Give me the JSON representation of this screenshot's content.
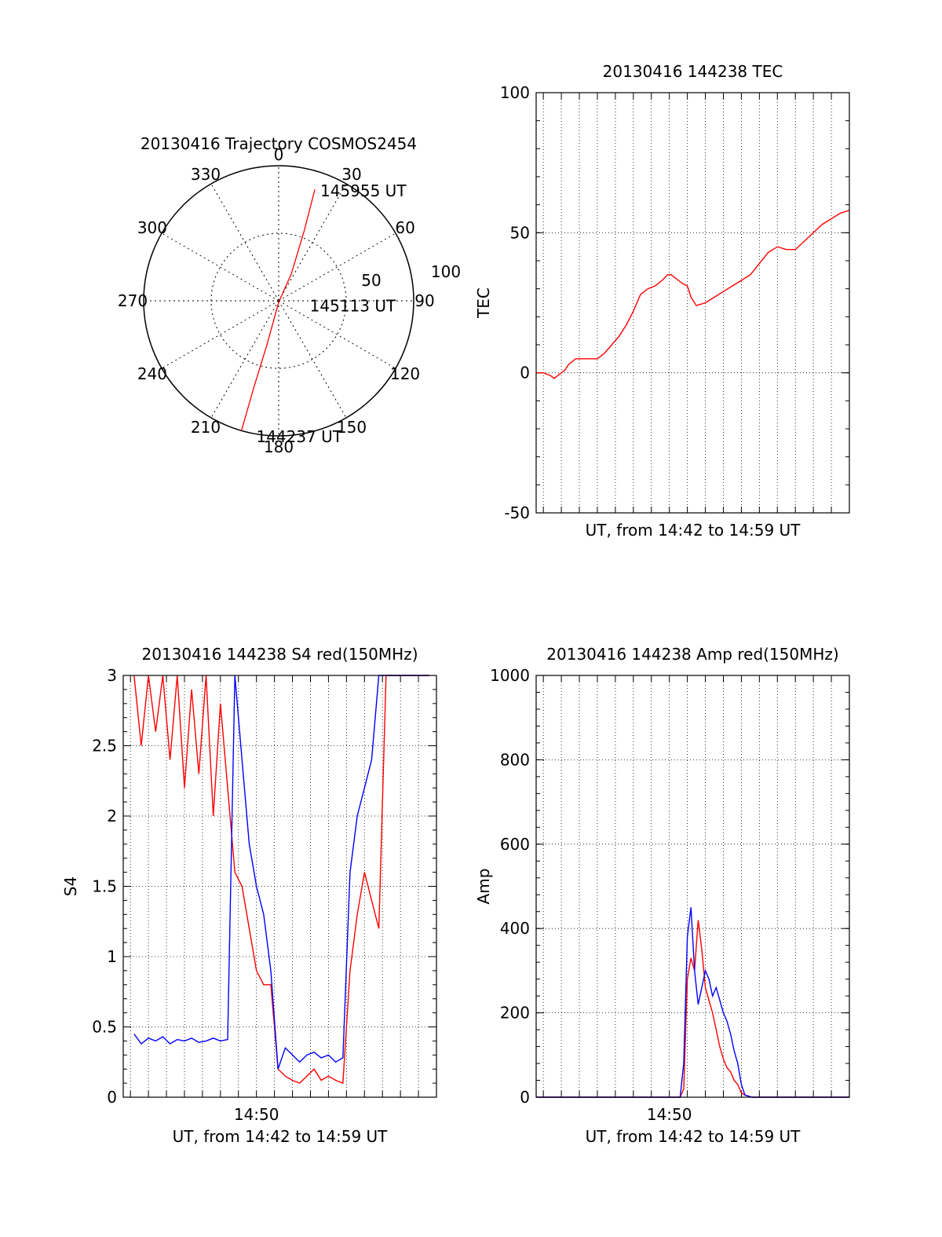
{
  "chart_data": [
    {
      "type": "polar-trajectory",
      "title": "20130416 Trajectory COSMOS2454",
      "azimuth_labels": [
        "0",
        "30",
        "60",
        "90",
        "120",
        "150",
        "180",
        "210",
        "240",
        "270",
        "300",
        "330"
      ],
      "radial_labels": [
        "50",
        "100"
      ],
      "trajectory": [
        {
          "az": 196,
          "zen": 90
        },
        {
          "az": 196,
          "zen": 60
        },
        {
          "az": 195,
          "zen": 30
        },
        {
          "az": 180,
          "zen": 1
        },
        {
          "az": 25,
          "zen": 20
        },
        {
          "az": 20,
          "zen": 50
        },
        {
          "az": 18,
          "zen": 78
        }
      ],
      "annotations": [
        {
          "text": "145955 UT",
          "az": 20,
          "zen": 78
        },
        {
          "text": "145113 UT",
          "az": 100,
          "zen": 20
        },
        {
          "text": "144237 UT",
          "az": 190,
          "zen": 92
        }
      ],
      "color": "#ff0000"
    },
    {
      "type": "line",
      "title": "20130416 144238 TEC",
      "xlabel": "UT, from 14:42 to 14:59 UT",
      "ylabel": "TEC",
      "xlim": [
        42.6,
        60.0
      ],
      "ylim": [
        -50,
        100
      ],
      "yticks": [
        -50,
        0,
        50,
        100
      ],
      "grid": true,
      "series": [
        {
          "color": "#ff0000",
          "x": [
            42.6,
            43.0,
            43.4,
            43.6,
            43.8,
            44.0,
            44.2,
            44.4,
            44.8,
            45.2,
            45.6,
            46.0,
            46.4,
            46.8,
            47.2,
            47.6,
            48.0,
            48.4,
            48.8,
            49.2,
            49.6,
            49.9,
            50.1,
            50.3,
            50.5,
            50.7,
            51.0,
            51.2,
            51.5,
            52.0,
            52.5,
            53.0,
            53.5,
            54.0,
            54.5,
            55.0,
            55.5,
            56.0,
            56.5,
            57.0,
            57.5,
            58.0,
            58.5,
            59.0,
            59.5,
            60.0
          ],
          "y": [
            0,
            0,
            -1,
            -2,
            -1,
            0,
            1,
            3,
            5,
            5,
            5,
            5,
            7,
            10,
            13,
            17,
            22,
            28,
            30,
            31,
            33,
            35,
            35,
            34,
            33,
            32,
            31,
            27,
            24,
            25,
            27,
            29,
            31,
            33,
            35,
            39,
            43,
            45,
            44,
            44,
            47,
            50,
            53,
            55,
            57,
            58
          ]
        }
      ]
    },
    {
      "type": "line",
      "title": "20130416 144238 S4 red(150MHz)",
      "xlabel": "UT, from 14:42 to 14:59 UT",
      "ylabel": "S4",
      "xlim": [
        42.6,
        60.0
      ],
      "ylim": [
        0,
        3
      ],
      "yticks": [
        "0",
        "0.5",
        "1",
        "1.5",
        "2",
        "2.5",
        "3"
      ],
      "xtick_labels": [
        {
          "x": 50,
          "label": "14:50"
        }
      ],
      "grid": true,
      "series": [
        {
          "color": "#ff0000",
          "x": [
            43.2,
            43.6,
            44.0,
            44.4,
            44.8,
            45.2,
            45.6,
            46.0,
            46.4,
            46.8,
            47.2,
            47.6,
            48.0,
            48.4,
            48.8,
            49.2,
            49.6,
            50.0,
            50.4,
            50.8,
            51.2,
            51.6,
            52.0,
            52.4,
            52.8,
            53.2,
            53.6,
            54.0,
            54.4,
            54.8,
            55.2,
            55.6,
            56.0,
            56.4,
            56.8,
            57.2,
            57.6,
            58.0,
            58.4,
            58.8,
            59.2,
            59.6
          ],
          "y": [
            3.0,
            2.5,
            3.0,
            2.6,
            3.0,
            2.4,
            3.0,
            2.2,
            2.9,
            2.3,
            3.0,
            2.0,
            2.8,
            2.2,
            1.6,
            1.5,
            1.2,
            0.9,
            0.8,
            0.8,
            0.2,
            0.15,
            0.12,
            0.1,
            0.15,
            0.2,
            0.12,
            0.15,
            0.12,
            0.1,
            0.9,
            1.3,
            1.6,
            1.4,
            1.2,
            3.0,
            3.0,
            3.0,
            3.0,
            3.0,
            3.0,
            3.0
          ]
        },
        {
          "color": "#0000ff",
          "x": [
            43.2,
            43.6,
            44.0,
            44.4,
            44.8,
            45.2,
            45.6,
            46.0,
            46.4,
            46.8,
            47.2,
            47.6,
            48.0,
            48.4,
            48.8,
            49.2,
            49.6,
            50.0,
            50.4,
            50.8,
            51.2,
            51.6,
            52.0,
            52.4,
            52.8,
            53.2,
            53.6,
            54.0,
            54.4,
            54.8,
            55.2,
            55.6,
            56.0,
            56.4,
            56.8,
            57.2,
            57.6,
            58.0,
            58.4,
            58.8,
            59.2,
            59.6
          ],
          "y": [
            0.45,
            0.38,
            0.42,
            0.4,
            0.43,
            0.38,
            0.41,
            0.4,
            0.42,
            0.39,
            0.4,
            0.42,
            0.4,
            0.41,
            3.0,
            2.4,
            1.8,
            1.5,
            1.3,
            0.9,
            0.2,
            0.35,
            0.3,
            0.25,
            0.3,
            0.32,
            0.28,
            0.3,
            0.25,
            0.28,
            1.6,
            2.0,
            2.2,
            2.4,
            3.0,
            3.0,
            3.0,
            3.0,
            3.0,
            3.0,
            3.0,
            3.0
          ]
        }
      ]
    },
    {
      "type": "line",
      "title": "20130416 144238 Amp red(150MHz)",
      "xlabel": "UT, from 14:42 to 14:59 UT",
      "ylabel": "Amp",
      "xlim": [
        42.6,
        60.0
      ],
      "ylim": [
        0,
        1000
      ],
      "yticks": [
        0,
        200,
        400,
        600,
        800,
        1000
      ],
      "xtick_labels": [
        {
          "x": 50,
          "label": "14:50"
        }
      ],
      "grid": true,
      "series": [
        {
          "color": "#ff0000",
          "x": [
            42.6,
            50.6,
            50.8,
            51.0,
            51.2,
            51.4,
            51.6,
            51.8,
            52.0,
            52.2,
            52.4,
            52.6,
            52.8,
            53.0,
            53.2,
            53.4,
            53.6,
            53.8,
            54.0,
            54.2,
            54.6,
            60.0
          ],
          "y": [
            0,
            0,
            20,
            280,
            330,
            300,
            420,
            350,
            260,
            230,
            200,
            160,
            120,
            90,
            70,
            60,
            40,
            30,
            10,
            5,
            0,
            0
          ]
        },
        {
          "color": "#0000ff",
          "x": [
            42.6,
            50.6,
            50.8,
            51.0,
            51.2,
            51.4,
            51.6,
            51.8,
            52.0,
            52.2,
            52.4,
            52.6,
            52.8,
            53.0,
            53.2,
            53.4,
            53.6,
            53.8,
            54.0,
            54.2,
            54.6,
            60.0
          ],
          "y": [
            0,
            0,
            80,
            380,
            450,
            300,
            220,
            260,
            300,
            280,
            240,
            260,
            230,
            200,
            180,
            150,
            110,
            80,
            30,
            5,
            0,
            0
          ]
        }
      ]
    }
  ]
}
